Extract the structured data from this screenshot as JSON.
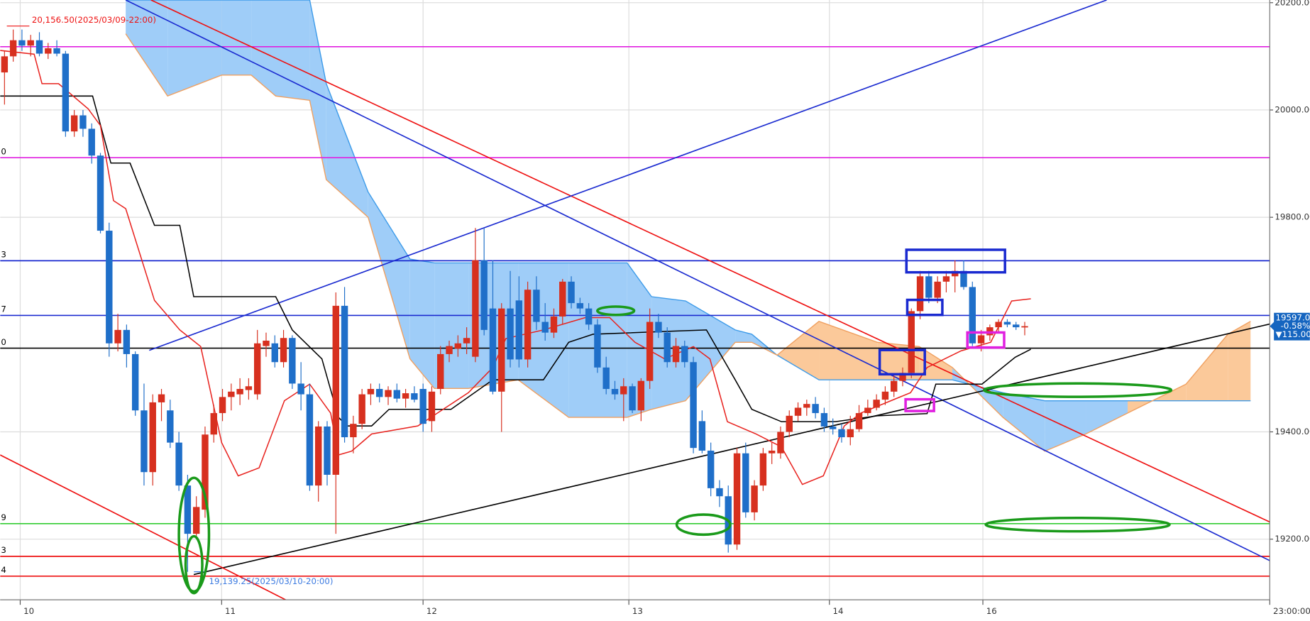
{
  "chart_data": {
    "type": "candlestick",
    "up_color": "#d7301f",
    "down_color": "#1f6fc9",
    "grid": true,
    "xlim": [
      -0.5,
      145.1
    ],
    "ylim": [
      19087,
      20205
    ],
    "yticks": [
      {
        "value": 20200,
        "label": "20200.00"
      },
      {
        "value": 20000,
        "label": "20000.00"
      },
      {
        "value": 19800,
        "label": "19800.00"
      },
      {
        "value": 19400,
        "label": "19400.00"
      },
      {
        "value": 19200,
        "label": "19200.00"
      }
    ],
    "xticks": [
      {
        "value": 1.8,
        "label": "10"
      },
      {
        "value": 24.9,
        "label": "11"
      },
      {
        "value": 48.0,
        "label": "12"
      },
      {
        "value": 71.6,
        "label": "13"
      },
      {
        "value": 94.6,
        "label": "14"
      },
      {
        "value": 112.2,
        "label": "16"
      },
      {
        "value": 145.1,
        "label": "23:00:00"
      }
    ],
    "ohlc": [
      [
        20070,
        20110,
        20010,
        20100
      ],
      [
        20100,
        20150,
        20090,
        20130
      ],
      [
        20130,
        20150,
        20110,
        20120
      ],
      [
        20120,
        20140,
        20100,
        20130
      ],
      [
        20130,
        20145,
        20100,
        20105
      ],
      [
        20105,
        20125,
        20095,
        20115
      ],
      [
        20115,
        20130,
        20100,
        20105
      ],
      [
        20105,
        20110,
        19950,
        19960
      ],
      [
        19960,
        20000,
        19950,
        19990
      ],
      [
        19990,
        20000,
        19950,
        19965
      ],
      [
        19965,
        19975,
        19900,
        19915
      ],
      [
        19915,
        19920,
        19770,
        19775
      ],
      [
        19775,
        19790,
        19540,
        19565
      ],
      [
        19565,
        19620,
        19550,
        19590
      ],
      [
        19590,
        19600,
        19520,
        19545
      ],
      [
        19545,
        19550,
        19430,
        19440
      ],
      [
        19440,
        19490,
        19300,
        19325
      ],
      [
        19325,
        19470,
        19300,
        19455
      ],
      [
        19455,
        19480,
        19420,
        19470
      ],
      [
        19440,
        19460,
        19370,
        19380
      ],
      [
        19380,
        19400,
        19290,
        19300
      ],
      [
        19300,
        19320,
        19139,
        19210
      ],
      [
        19210,
        19280,
        19200,
        19260
      ],
      [
        19255,
        19410,
        19240,
        19395
      ],
      [
        19395,
        19450,
        19380,
        19435
      ],
      [
        19435,
        19480,
        19420,
        19465
      ],
      [
        19465,
        19490,
        19440,
        19475
      ],
      [
        19470,
        19500,
        19450,
        19480
      ],
      [
        19478,
        19500,
        19460,
        19485
      ],
      [
        19470,
        19590,
        19460,
        19565
      ],
      [
        19560,
        19585,
        19540,
        19570
      ],
      [
        19565,
        19580,
        19520,
        19530
      ],
      [
        19530,
        19590,
        19520,
        19575
      ],
      [
        19575,
        19580,
        19480,
        19490
      ],
      [
        19490,
        19530,
        19440,
        19470
      ],
      [
        19470,
        19490,
        19290,
        19300
      ],
      [
        19300,
        19420,
        19270,
        19410
      ],
      [
        19410,
        19420,
        19300,
        19320
      ],
      [
        19320,
        19660,
        19210,
        19635
      ],
      [
        19635,
        19670,
        19380,
        19390
      ],
      [
        19390,
        19430,
        19360,
        19415
      ],
      [
        19415,
        19480,
        19405,
        19470
      ],
      [
        19470,
        19490,
        19450,
        19480
      ],
      [
        19480,
        19490,
        19455,
        19465
      ],
      [
        19465,
        19485,
        19450,
        19478
      ],
      [
        19478,
        19490,
        19455,
        19462
      ],
      [
        19462,
        19480,
        19445,
        19472
      ],
      [
        19472,
        19485,
        19455,
        19460
      ],
      [
        19480,
        19490,
        19400,
        19415
      ],
      [
        19420,
        19485,
        19400,
        19475
      ],
      [
        19480,
        19560,
        19470,
        19545
      ],
      [
        19545,
        19570,
        19530,
        19560
      ],
      [
        19555,
        19580,
        19540,
        19565
      ],
      [
        19565,
        19595,
        19545,
        19575
      ],
      [
        19540,
        19780,
        19530,
        19720
      ],
      [
        19720,
        19780,
        19580,
        19590
      ],
      [
        19630,
        19720,
        19470,
        19475
      ],
      [
        19475,
        19640,
        19400,
        19630
      ],
      [
        19630,
        19700,
        19520,
        19535
      ],
      [
        19645,
        19690,
        19520,
        19535
      ],
      [
        19535,
        19680,
        19520,
        19665
      ],
      [
        19665,
        19690,
        19590,
        19605
      ],
      [
        19605,
        19640,
        19570,
        19585
      ],
      [
        19585,
        19630,
        19575,
        19615
      ],
      [
        19615,
        19685,
        19600,
        19680
      ],
      [
        19680,
        19690,
        19630,
        19640
      ],
      [
        19640,
        19650,
        19620,
        19630
      ],
      [
        19630,
        19640,
        19590,
        19600
      ],
      [
        19600,
        19610,
        19510,
        19520
      ],
      [
        19520,
        19540,
        19470,
        19480
      ],
      [
        19480,
        19495,
        19460,
        19470
      ],
      [
        19470,
        19500,
        19420,
        19485
      ],
      [
        19485,
        19490,
        19435,
        19440
      ],
      [
        19440,
        19500,
        19420,
        19495
      ],
      [
        19495,
        19630,
        19480,
        19605
      ],
      [
        19605,
        19620,
        19575,
        19585
      ],
      [
        19585,
        19595,
        19520,
        19530
      ],
      [
        19530,
        19575,
        19520,
        19560
      ],
      [
        19560,
        19570,
        19520,
        19530
      ],
      [
        19530,
        19540,
        19360,
        19370
      ],
      [
        19420,
        19440,
        19360,
        19365
      ],
      [
        19365,
        19380,
        19280,
        19295
      ],
      [
        19295,
        19310,
        19260,
        19280
      ],
      [
        19280,
        19300,
        19175,
        19190
      ],
      [
        19190,
        19370,
        19180,
        19360
      ],
      [
        19360,
        19380,
        19240,
        19250
      ],
      [
        19250,
        19310,
        19235,
        19300
      ],
      [
        19300,
        19370,
        19290,
        19360
      ],
      [
        19360,
        19380,
        19340,
        19365
      ],
      [
        19360,
        19410,
        19350,
        19400
      ],
      [
        19400,
        19440,
        19390,
        19430
      ],
      [
        19430,
        19455,
        19420,
        19445
      ],
      [
        19445,
        19460,
        19430,
        19452
      ],
      [
        19452,
        19465,
        19425,
        19435
      ],
      [
        19435,
        19445,
        19400,
        19410
      ],
      [
        19410,
        19425,
        19395,
        19405
      ],
      [
        19405,
        19415,
        19380,
        19390
      ],
      [
        19390,
        19430,
        19375,
        19405
      ],
      [
        19405,
        19450,
        19400,
        19435
      ],
      [
        19435,
        19460,
        19430,
        19445
      ],
      [
        19445,
        19470,
        19440,
        19460
      ],
      [
        19460,
        19485,
        19450,
        19475
      ],
      [
        19475,
        19505,
        19465,
        19495
      ],
      [
        19495,
        19520,
        19485,
        19510
      ],
      [
        19510,
        19630,
        19500,
        19625
      ],
      [
        19625,
        19700,
        19610,
        19690
      ],
      [
        19690,
        19700,
        19640,
        19650
      ],
      [
        19650,
        19690,
        19640,
        19680
      ],
      [
        19680,
        19700,
        19660,
        19690
      ],
      [
        19690,
        19720,
        19660,
        19700
      ],
      [
        19700,
        19720,
        19665,
        19670
      ],
      [
        19670,
        19680,
        19560,
        19565
      ],
      [
        19565,
        19590,
        19550,
        19580
      ],
      [
        19580,
        19600,
        19570,
        19595
      ],
      [
        19595,
        19610,
        19585,
        19605
      ],
      [
        19605,
        19610,
        19595,
        19600
      ],
      [
        19600,
        19605,
        19590,
        19595
      ],
      [
        19595,
        19605,
        19580,
        19597
      ]
    ],
    "cloud": {
      "up_color": "#9fcdf8",
      "down_color": "#fbc99a",
      "span_a_color": "#3d9be9",
      "span_b_color": "#f0a060",
      "x": [
        13.9,
        18.7,
        24.9,
        28.3,
        31.1,
        35.0,
        36.9,
        41.7,
        46.5,
        49.3,
        53.2,
        58.9,
        64.7,
        71.4,
        74.2,
        78.1,
        83.8,
        85.7,
        88.6,
        93.4,
        100.1,
        104.9,
        108.7,
        114.5,
        119.3,
        124.0,
        128.8,
        135.5,
        140.3,
        142.9
      ],
      "span_a": [
        20205,
        20205,
        20205,
        20205,
        20205,
        20205,
        20049,
        19847,
        19722,
        19715,
        19715,
        19715,
        19715,
        19715,
        19652,
        19644,
        19590,
        19582,
        19543,
        19497,
        19497,
        19497,
        19497,
        19473,
        19458,
        19458,
        19458,
        19458,
        19458,
        19458
      ],
      "span_b": [
        20142,
        20026,
        20065,
        20065,
        20026,
        20018,
        19870,
        19800,
        19536,
        19481,
        19481,
        19497,
        19427,
        19427,
        19442,
        19458,
        19567,
        19567,
        19543,
        19606,
        19567,
        19559,
        19520,
        19427,
        19364,
        19396,
        19435,
        19489,
        19582,
        19606
      ]
    },
    "kijun": {
      "color": "#000000",
      "x": [
        -0.5,
        10.1,
        12.2,
        14.4,
        17.2,
        20.1,
        21.7,
        31.1,
        33.0,
        36.4,
        38.3,
        39.3,
        42.1,
        44.1,
        51.2,
        56.0,
        61.8,
        64.7,
        67.5,
        77.1,
        80.5,
        83.8,
        85.7,
        89.1,
        95.3,
        100.1,
        105.8,
        106.8,
        112.1,
        115.9,
        117.7
      ],
      "values": [
        20026,
        20026,
        19901,
        19901,
        19785,
        19785,
        19652,
        19652,
        19590,
        19536,
        19427,
        19411,
        19411,
        19442,
        19442,
        19497,
        19497,
        19567,
        19582,
        19588,
        19590,
        19497,
        19442,
        19419,
        19419,
        19430,
        19434,
        19489,
        19489,
        19539,
        19554
      ]
    },
    "tenkan": {
      "color": "#e8231f",
      "x": [
        -0.5,
        3.4,
        4.3,
        6.2,
        9.6,
        11.0,
        12.5,
        13.9,
        17.2,
        20.1,
        22.5,
        24.9,
        26.8,
        29.2,
        32.1,
        35.0,
        37.4,
        38.3,
        39.8,
        42.1,
        47.4,
        53.2,
        56.0,
        57.5,
        61.8,
        66.6,
        69.4,
        72.3,
        75.7,
        79.0,
        80.9,
        82.9,
        86.2,
        89.1,
        91.5,
        93.9,
        96.3,
        98.2,
        103.9,
        105.8,
        109.7,
        113.1,
        115.5,
        117.7
      ],
      "values": [
        20111,
        20104,
        20049,
        20049,
        20002,
        19971,
        19831,
        19816,
        19645,
        19590,
        19559,
        19380,
        19318,
        19333,
        19458,
        19489,
        19435,
        19357,
        19364,
        19396,
        19411,
        19473,
        19520,
        19574,
        19590,
        19613,
        19613,
        19567,
        19536,
        19559,
        19536,
        19419,
        19396,
        19372,
        19302,
        19318,
        19411,
        19435,
        19473,
        19520,
        19551,
        19567,
        19644,
        19648
      ]
    },
    "hlines": [
      {
        "value": 20118,
        "color": "#e020e0",
        "label": null
      },
      {
        "value": 19911,
        "color": "#e020e0",
        "label": "0"
      },
      {
        "value": 19719,
        "color": "#1a2ad0",
        "label": "3"
      },
      {
        "value": 19617,
        "color": "#1a2ad0",
        "label": "7"
      },
      {
        "value": 19556,
        "color": "#000000",
        "label": "0"
      },
      {
        "value": 19229,
        "color": "#33cc33",
        "label": "9"
      },
      {
        "value": 19168,
        "color": "#ee1111",
        "label": "3"
      },
      {
        "value": 19131,
        "color": "#ee1111",
        "label": "4"
      }
    ],
    "trendlines": [
      {
        "color": "#1a2ad0",
        "x": [
          13.9,
          145.1
        ],
        "y": [
          20205,
          19160
        ]
      },
      {
        "color": "#ee1111",
        "x": [
          16.8,
          145.1
        ],
        "y": [
          20205,
          19232
        ]
      },
      {
        "color": "#1a2ad0",
        "x": [
          16.6,
          126.4
        ],
        "y": [
          19552,
          20205
        ]
      },
      {
        "color": "#000000",
        "x": [
          21.7,
          145.1
        ],
        "y": [
          19134,
          19601
        ]
      },
      {
        "color": "#ee1111",
        "x": [
          -0.5,
          32.6
        ],
        "y": [
          19357,
          19084
        ]
      }
    ],
    "annotations": [
      {
        "value": 20156.5,
        "label": "20,156.50(2025/03/09-22:00)",
        "color": "#ee1111"
      },
      {
        "value": 19139.25,
        "label": "19,139.25(2025/03/10-20:00)",
        "color": "#3d7be0"
      }
    ],
    "last_price": {
      "value": 19597,
      "label": "19597.00",
      "change": "-0.58%",
      "diff": "▼115.00",
      "color": "#1565c0"
    }
  }
}
